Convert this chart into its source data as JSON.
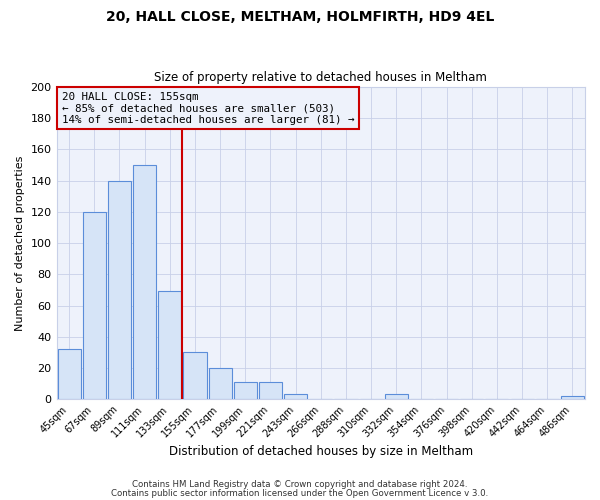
{
  "title": "20, HALL CLOSE, MELTHAM, HOLMFIRTH, HD9 4EL",
  "subtitle": "Size of property relative to detached houses in Meltham",
  "xlabel": "Distribution of detached houses by size in Meltham",
  "ylabel": "Number of detached properties",
  "bins": [
    "45sqm",
    "67sqm",
    "89sqm",
    "111sqm",
    "133sqm",
    "155sqm",
    "177sqm",
    "199sqm",
    "221sqm",
    "243sqm",
    "266sqm",
    "288sqm",
    "310sqm",
    "332sqm",
    "354sqm",
    "376sqm",
    "398sqm",
    "420sqm",
    "442sqm",
    "464sqm",
    "486sqm"
  ],
  "counts": [
    32,
    120,
    140,
    150,
    69,
    30,
    20,
    11,
    11,
    3,
    0,
    0,
    0,
    3,
    0,
    0,
    0,
    0,
    0,
    0,
    2
  ],
  "bar_color": "#d6e4f7",
  "bar_edge_color": "#5b8dd9",
  "vline_color": "#cc0000",
  "vline_pos": 4.5,
  "ylim": [
    0,
    200
  ],
  "yticks": [
    0,
    20,
    40,
    60,
    80,
    100,
    120,
    140,
    160,
    180,
    200
  ],
  "annotation_title": "20 HALL CLOSE: 155sqm",
  "annotation_line1": "← 85% of detached houses are smaller (503)",
  "annotation_line2": "14% of semi-detached houses are larger (81) →",
  "annotation_box_edge": "#cc0000",
  "footnote1": "Contains HM Land Registry data © Crown copyright and database right 2024.",
  "footnote2": "Contains public sector information licensed under the Open Government Licence v 3.0.",
  "background_color": "#ffffff",
  "plot_bg_color": "#eef2fb",
  "grid_color": "#c8d0e8"
}
